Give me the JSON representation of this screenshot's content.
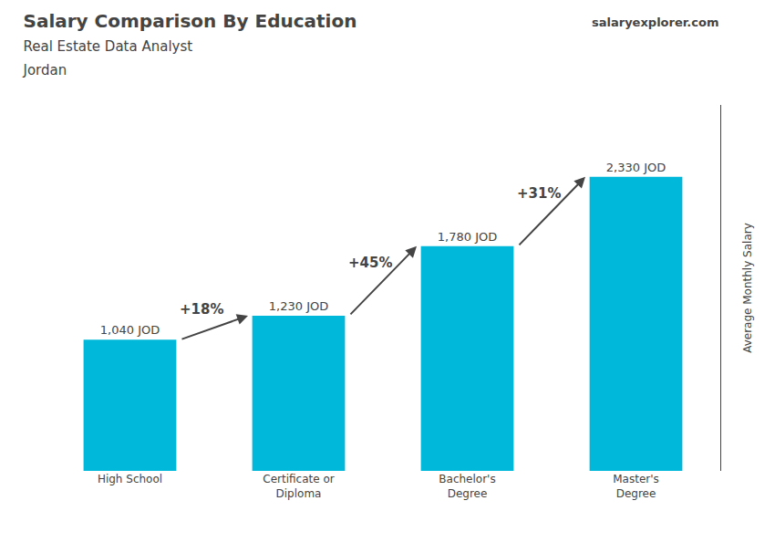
{
  "chart_data": {
    "type": "bar",
    "title": "Salary Comparison By Education",
    "subtitle": [
      "Real Estate Data Analyst",
      "Jordan"
    ],
    "categories": [
      "High School",
      "Certificate or\nDiploma",
      "Bachelor's\nDegree",
      "Master's\nDegree"
    ],
    "values": [
      1040,
      1230,
      1780,
      2330
    ],
    "value_labels": [
      "1,040 JOD",
      "1,230 JOD",
      "1,780 JOD",
      "2,330 JOD"
    ],
    "data_labels": true,
    "color": "#00b8d9",
    "ylabel": "Average Monthly Salary",
    "ylim": [
      0,
      2900
    ],
    "grid": false,
    "tick_labels": "x",
    "annotations": [
      {
        "text": "salaryexplorer.com"
      },
      {
        "text": "+18%",
        "from": "High School",
        "to": "Certificate or\nDiploma"
      },
      {
        "text": "+45%",
        "from": "Certificate or\nDiploma",
        "to": "Bachelor's\nDegree"
      },
      {
        "text": "+31%",
        "from": "Bachelor's\nDegree",
        "to": "Master's\nDegree"
      }
    ]
  }
}
